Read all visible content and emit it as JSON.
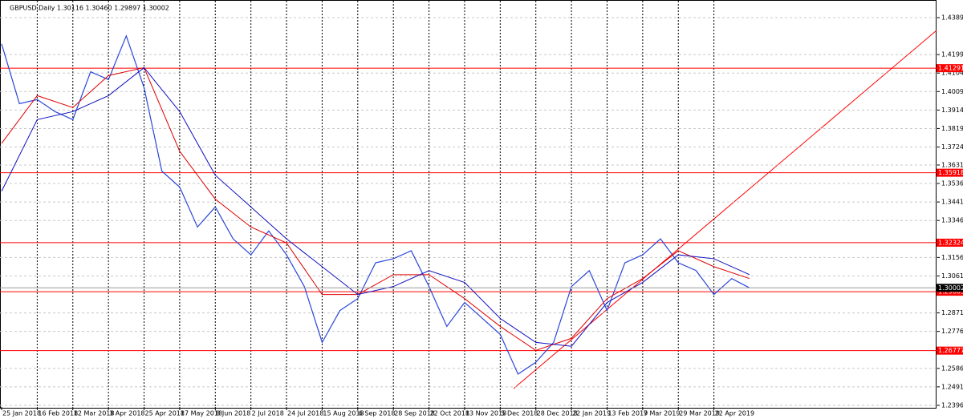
{
  "chart_data": {
    "type": "line",
    "title": "GBPUSD,Daily  1.30116 1.30460 1.29897 1.30002",
    "xlim": [
      0,
      420
    ],
    "xticks": [
      {
        "value": 0,
        "label": "25 Jan 2018"
      },
      {
        "value": 16,
        "label": "16 Feb 2018"
      },
      {
        "value": 32,
        "label": "12 Mar 2018"
      },
      {
        "value": 48,
        "label": "3 Apr 2018"
      },
      {
        "value": 64,
        "label": "25 Apr 2018"
      },
      {
        "value": 80,
        "label": "17 May 2018"
      },
      {
        "value": 96,
        "label": "8 Jun 2018"
      },
      {
        "value": 112,
        "label": "2 Jul 2018"
      },
      {
        "value": 128,
        "label": "24 Jul 2018"
      },
      {
        "value": 144,
        "label": "15 Aug 2018"
      },
      {
        "value": 160,
        "label": "6 Sep 2018"
      },
      {
        "value": 176,
        "label": "28 Sep 2018"
      },
      {
        "value": 192,
        "label": "22 Oct 2018"
      },
      {
        "value": 208,
        "label": "13 Nov 2018"
      },
      {
        "value": 224,
        "label": "5 Dec 2018"
      },
      {
        "value": 240,
        "label": "28 Dec 2018"
      },
      {
        "value": 256,
        "label": "22 Jan 2019"
      },
      {
        "value": 272,
        "label": "13 Feb 2019"
      },
      {
        "value": 288,
        "label": "7 Mar 2019"
      },
      {
        "value": 304,
        "label": "29 Mar 2019"
      },
      {
        "value": 320,
        "label": "22 Apr 2019"
      }
    ],
    "ylim": [
      1.2388,
      1.4459
    ],
    "yticks": [
      {
        "value": 1.4389,
        "label": "1.43890"
      },
      {
        "value": 1.4199,
        "label": "1.41990"
      },
      {
        "value": 1.4104,
        "label": "1.41040"
      },
      {
        "value": 1.4009,
        "label": "1.40090"
      },
      {
        "value": 1.3914,
        "label": "1.39140"
      },
      {
        "value": 1.3819,
        "label": "1.38190"
      },
      {
        "value": 1.3724,
        "label": "1.37240"
      },
      1.36315,
      1.35365,
      1.34415,
      1.33465,
      1.31565,
      1.30615,
      1.28715,
      1.27765,
      1.25865,
      1.24915,
      1.23965
    ],
    "grid": true,
    "series": [
      {
        "color": "#2a46d8",
        "x": [
          0,
          8,
          16,
          24,
          32,
          40,
          48,
          56,
          64,
          72,
          80,
          88,
          96,
          104,
          112,
          120,
          128,
          136,
          144,
          152,
          160,
          168,
          176,
          184,
          192,
          200,
          208,
          216,
          224,
          232,
          240,
          248,
          256,
          264,
          272,
          280,
          288,
          296,
          304,
          312,
          320,
          328,
          336
        ],
        "values": [
          1.4254,
          1.3947,
          1.3968,
          1.3906,
          1.3865,
          1.4111,
          1.407,
          1.4295,
          1.4029,
          1.36,
          1.3518,
          1.3313,
          1.3416,
          1.3252,
          1.317,
          1.3293,
          1.317,
          1.3007,
          1.272,
          1.2884,
          1.2945,
          1.3129,
          1.315,
          1.3191,
          1.3007,
          1.2802,
          1.2925,
          1.2843,
          1.2761,
          1.2557,
          1.2618,
          1.272,
          1.3007,
          1.3089,
          1.2884,
          1.3129,
          1.317,
          1.3252,
          1.3129,
          1.3089,
          1.2966,
          1.3048,
          1.30002
        ]
      },
      {
        "color": "#e00000",
        "x": [
          0,
          16,
          32,
          48,
          64,
          80,
          96,
          112,
          128,
          144,
          160,
          176,
          192,
          208,
          224,
          240,
          256,
          272,
          288,
          304,
          320,
          336
        ],
        "values": [
          1.3743,
          1.3988,
          1.3927,
          1.4091,
          1.4132,
          1.3702,
          1.3456,
          1.3313,
          1.3231,
          1.2966,
          1.2966,
          1.3068,
          1.3068,
          1.2945,
          1.2802,
          1.2679,
          1.2741,
          1.2945,
          1.3048,
          1.3191,
          1.3109,
          1.3048
        ]
      },
      {
        "color": "#1010c0",
        "x": [
          0,
          16,
          32,
          48,
          64,
          80,
          96,
          112,
          128,
          144,
          160,
          176,
          192,
          208,
          224,
          240,
          256,
          272,
          288,
          304,
          320,
          336
        ],
        "values": [
          1.3497,
          1.3865,
          1.3906,
          1.3988,
          1.4132,
          1.3906,
          1.3579,
          1.3416,
          1.3252,
          1.3109,
          1.2966,
          1.3007,
          1.3089,
          1.3028,
          1.2843,
          1.272,
          1.27,
          1.2925,
          1.3028,
          1.317,
          1.315,
          1.3068
        ]
      }
    ],
    "levels": [
      1.41291,
      1.35918,
      1.32324,
      1.29805,
      1.26777
    ],
    "level_color": "#ff0000",
    "current_price": 1.30002
  }
}
